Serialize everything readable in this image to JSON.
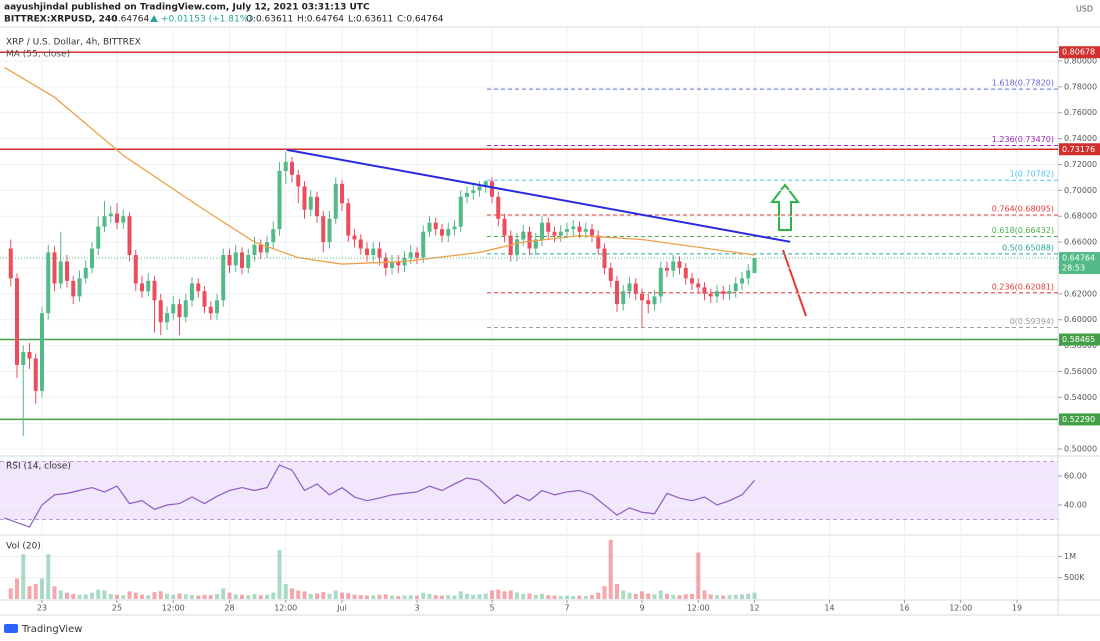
{
  "header": {
    "author_line": "aayushjindal published on TradingView.com, July 12, 2021 03:31:13 UTC",
    "symbol": "BITTREX:XRPUSD, 240",
    "price": "0.64764",
    "change": "+0.01153 (+1.81%)",
    "ohlc": [
      "O:0.63611",
      "H:0.64764",
      "L:0.63611",
      "C:0.64764"
    ]
  },
  "footer": "TradingView",
  "chart_data": [
    {
      "type": "candlestick",
      "title": "XRP / U.S. Dollar, 4h, BITTREX",
      "y_axis_label": "USD",
      "x": [
        1,
        2,
        3,
        4,
        5,
        6,
        7,
        8,
        9,
        10,
        11,
        12,
        13,
        14,
        15,
        16,
        17,
        18,
        19,
        20,
        21,
        22,
        23,
        24,
        25,
        26,
        27,
        28,
        29,
        30,
        31,
        32,
        33,
        34,
        35,
        36,
        37,
        38,
        39,
        40,
        41,
        42,
        43,
        44,
        45,
        46,
        47,
        48,
        49,
        50,
        51,
        52,
        53,
        54,
        55,
        56,
        57,
        58,
        59,
        60,
        61,
        62,
        63,
        64,
        65,
        66,
        67,
        68,
        69,
        70,
        71,
        72,
        73,
        74,
        75,
        76,
        77,
        78,
        79,
        80,
        81,
        82,
        83,
        84,
        85,
        86,
        87,
        88,
        89,
        90,
        91,
        92,
        93,
        94,
        95,
        96,
        97,
        98,
        99,
        100,
        101,
        102,
        103,
        104,
        105,
        106,
        107,
        108,
        109,
        110,
        111,
        112,
        113,
        114,
        115,
        116,
        117,
        118,
        119,
        120
      ],
      "open": [
        0.655,
        0.632,
        0.565,
        0.575,
        0.57,
        0.545,
        0.605,
        0.652,
        0.628,
        0.645,
        0.63,
        0.618,
        0.632,
        0.64,
        0.655,
        0.672,
        0.68,
        0.682,
        0.675,
        0.68,
        0.65,
        0.628,
        0.622,
        0.63,
        0.615,
        0.598,
        0.605,
        0.612,
        0.602,
        0.615,
        0.628,
        0.622,
        0.61,
        0.605,
        0.615,
        0.65,
        0.642,
        0.652,
        0.64,
        0.65,
        0.658,
        0.652,
        0.66,
        0.67,
        0.715,
        0.722,
        0.712,
        0.703,
        0.685,
        0.695,
        0.68,
        0.66,
        0.678,
        0.705,
        0.69,
        0.665,
        0.662,
        0.655,
        0.65,
        0.655,
        0.648,
        0.64,
        0.645,
        0.642,
        0.648,
        0.652,
        0.648,
        0.668,
        0.675,
        0.67,
        0.665,
        0.67,
        0.672,
        0.695,
        0.698,
        0.7,
        0.703,
        0.707,
        0.695,
        0.678,
        0.665,
        0.65,
        0.662,
        0.668,
        0.655,
        0.662,
        0.675,
        0.668,
        0.665,
        0.668,
        0.67,
        0.672,
        0.668,
        0.67,
        0.665,
        0.655,
        0.64,
        0.63,
        0.612,
        0.622,
        0.628,
        0.62,
        0.615,
        0.612,
        0.618,
        0.64,
        0.638,
        0.645,
        0.64,
        0.632,
        0.628,
        0.625,
        0.62,
        0.618,
        0.622,
        0.62,
        0.622,
        0.628,
        0.632,
        0.63611
      ],
      "high": [
        0.662,
        0.636,
        0.58,
        0.582,
        0.574,
        0.61,
        0.658,
        0.657,
        0.668,
        0.65,
        0.634,
        0.638,
        0.646,
        0.66,
        0.68,
        0.692,
        0.688,
        0.69,
        0.685,
        0.683,
        0.654,
        0.634,
        0.636,
        0.634,
        0.62,
        0.61,
        0.618,
        0.616,
        0.62,
        0.633,
        0.632,
        0.626,
        0.614,
        0.62,
        0.655,
        0.655,
        0.658,
        0.656,
        0.655,
        0.664,
        0.662,
        0.665,
        0.676,
        0.722,
        0.73,
        0.726,
        0.716,
        0.707,
        0.7,
        0.699,
        0.684,
        0.684,
        0.71,
        0.708,
        0.694,
        0.67,
        0.666,
        0.66,
        0.66,
        0.66,
        0.652,
        0.65,
        0.65,
        0.653,
        0.658,
        0.656,
        0.673,
        0.68,
        0.679,
        0.674,
        0.675,
        0.677,
        0.7,
        0.703,
        0.705,
        0.707,
        0.7078,
        0.71,
        0.699,
        0.682,
        0.669,
        0.667,
        0.673,
        0.672,
        0.667,
        0.68,
        0.679,
        0.672,
        0.673,
        0.675,
        0.677,
        0.676,
        0.675,
        0.674,
        0.669,
        0.659,
        0.644,
        0.634,
        0.627,
        0.633,
        0.632,
        0.624,
        0.62,
        0.623,
        0.645,
        0.645,
        0.65,
        0.649,
        0.644,
        0.636,
        0.632,
        0.629,
        0.624,
        0.627,
        0.626,
        0.627,
        0.633,
        0.637,
        0.643,
        0.64764
      ],
      "low": [
        0.626,
        0.555,
        0.51,
        0.562,
        0.535,
        0.54,
        0.6,
        0.622,
        0.624,
        0.625,
        0.612,
        0.614,
        0.628,
        0.636,
        0.65,
        0.668,
        0.675,
        0.67,
        0.67,
        0.645,
        0.622,
        0.617,
        0.618,
        0.59,
        0.588,
        0.592,
        0.6,
        0.588,
        0.598,
        0.61,
        0.617,
        0.605,
        0.6,
        0.6,
        0.61,
        0.636,
        0.637,
        0.635,
        0.636,
        0.645,
        0.647,
        0.648,
        0.655,
        0.665,
        0.705,
        0.706,
        0.69,
        0.678,
        0.68,
        0.675,
        0.652,
        0.655,
        0.674,
        0.684,
        0.66,
        0.656,
        0.65,
        0.645,
        0.645,
        0.642,
        0.634,
        0.635,
        0.636,
        0.637,
        0.643,
        0.643,
        0.644,
        0.664,
        0.665,
        0.66,
        0.66,
        0.665,
        0.668,
        0.69,
        0.693,
        0.695,
        0.698,
        0.69,
        0.672,
        0.66,
        0.645,
        0.645,
        0.657,
        0.65,
        0.65,
        0.657,
        0.663,
        0.66,
        0.66,
        0.663,
        0.665,
        0.663,
        0.663,
        0.66,
        0.65,
        0.635,
        0.625,
        0.606,
        0.607,
        0.617,
        0.615,
        0.59394,
        0.605,
        0.607,
        0.613,
        0.633,
        0.633,
        0.635,
        0.627,
        0.623,
        0.62,
        0.615,
        0.613,
        0.613,
        0.615,
        0.615,
        0.617,
        0.623,
        0.627,
        0.63611
      ],
      "close": [
        0.632,
        0.565,
        0.575,
        0.57,
        0.545,
        0.605,
        0.652,
        0.628,
        0.645,
        0.63,
        0.618,
        0.632,
        0.64,
        0.655,
        0.672,
        0.68,
        0.682,
        0.675,
        0.68,
        0.65,
        0.628,
        0.622,
        0.63,
        0.615,
        0.598,
        0.605,
        0.612,
        0.602,
        0.615,
        0.628,
        0.622,
        0.61,
        0.605,
        0.615,
        0.65,
        0.642,
        0.652,
        0.64,
        0.65,
        0.658,
        0.652,
        0.66,
        0.67,
        0.715,
        0.722,
        0.712,
        0.703,
        0.685,
        0.695,
        0.68,
        0.66,
        0.678,
        0.705,
        0.69,
        0.665,
        0.662,
        0.655,
        0.65,
        0.655,
        0.648,
        0.64,
        0.645,
        0.642,
        0.648,
        0.652,
        0.648,
        0.668,
        0.675,
        0.67,
        0.665,
        0.67,
        0.672,
        0.695,
        0.698,
        0.7,
        0.703,
        0.707,
        0.695,
        0.678,
        0.665,
        0.65,
        0.662,
        0.668,
        0.655,
        0.662,
        0.675,
        0.668,
        0.665,
        0.668,
        0.67,
        0.672,
        0.668,
        0.67,
        0.665,
        0.655,
        0.64,
        0.63,
        0.612,
        0.622,
        0.628,
        0.62,
        0.615,
        0.612,
        0.618,
        0.64,
        0.638,
        0.645,
        0.64,
        0.632,
        0.628,
        0.625,
        0.62,
        0.618,
        0.622,
        0.62,
        0.622,
        0.628,
        0.632,
        0.638,
        0.64764
      ],
      "up_color": "#53b987",
      "down_color": "#eb4d5c",
      "xlim": [
        -0.72,
        168.56
      ],
      "ylim": [
        0.4954,
        0.8255
      ],
      "grid": true,
      "yticks": [
        {
          "value": 0.5,
          "label": "0.50000"
        },
        {
          "value": 0.52,
          "label": "0.52000"
        },
        {
          "value": 0.54,
          "label": "0.54000"
        },
        {
          "value": 0.56,
          "label": "0.56000"
        },
        {
          "value": 0.58,
          "label": "0.58000"
        },
        {
          "value": 0.6,
          "label": "0.60000"
        },
        {
          "value": 0.62,
          "label": "0.62000"
        },
        {
          "value": 0.64,
          "label": "0.64000"
        },
        {
          "value": 0.66,
          "label": "0.66000"
        },
        {
          "value": 0.68,
          "label": "0.68000"
        },
        {
          "value": 0.7,
          "label": "0.70000"
        },
        {
          "value": 0.72,
          "label": "0.72000"
        },
        {
          "value": 0.74,
          "label": "0.74000"
        },
        {
          "value": 0.76,
          "label": "0.76000"
        },
        {
          "value": 0.78,
          "label": "0.78000"
        },
        {
          "value": 0.8,
          "label": "0.80000"
        }
      ],
      "overlays": [
        {
          "name": "MA (55, close)",
          "color": "#f0a048",
          "x": [
            0,
            8,
            19,
            31,
            40,
            47,
            54,
            64,
            76,
            83,
            92,
            102,
            111,
            120
          ],
          "values": [
            0.795,
            0.772,
            0.727,
            0.688,
            0.66,
            0.648,
            0.643,
            0.645,
            0.652,
            0.66,
            0.665,
            0.662,
            0.656,
            0.65
          ]
        }
      ],
      "trendline": {
        "color": "#2a2ae0",
        "x": [
          45.2,
          125.7
        ],
        "values": [
          0.7313,
          0.6602
        ]
      },
      "levels": [
        {
          "value": 0.80678,
          "label": "0.80678",
          "color": "#d32f2f"
        },
        {
          "value": 0.73176,
          "label": "0.73176",
          "color": "#d32f2f"
        },
        {
          "value": 0.58465,
          "label": "0.58465",
          "color": "#43a047"
        },
        {
          "value": 0.5229,
          "label": "0.52290",
          "color": "#43a047"
        }
      ],
      "fib": {
        "x_start": 77.2,
        "levels": [
          {
            "value": 0.7782,
            "label": "1.618(0.77820)",
            "color": "#5b6bd5"
          },
          {
            "value": 0.7347,
            "label": "1.236(0.73470)",
            "color": "#9c27b0"
          },
          {
            "value": 0.70782,
            "label": "1(0.70782)",
            "color": "#4fc3f7"
          },
          {
            "value": 0.68095,
            "label": "0.764(0.68095)",
            "color": "#e53935"
          },
          {
            "value": 0.66432,
            "label": "0.618(0.66432)",
            "color": "#4caf50"
          },
          {
            "value": 0.65088,
            "label": "0.5(0.65088)",
            "color": "#26a69a"
          },
          {
            "value": 0.62081,
            "label": "0.236(0.62081)",
            "color": "#e53935"
          },
          {
            "value": 0.59394,
            "label": "0(0.59394)",
            "color": "#9e9e9e"
          }
        ]
      },
      "last_price": {
        "value": 0.64764,
        "label": "0.64764",
        "countdown": "28:53",
        "color": "#53b987"
      }
    },
    {
      "type": "line",
      "title": "RSI (14, close)",
      "color": "#8e5bc4",
      "x": [
        0,
        4,
        6,
        8,
        10,
        12,
        14,
        16,
        18,
        20,
        22,
        24,
        26,
        28,
        30,
        32,
        34,
        36,
        38,
        40,
        42,
        44,
        46,
        48,
        50,
        52,
        54,
        56,
        58,
        60,
        62,
        64,
        66,
        68,
        70,
        72,
        74,
        76,
        78,
        80,
        82,
        84,
        86,
        88,
        90,
        92,
        94,
        96,
        98,
        100,
        102,
        104,
        106,
        108,
        110,
        112,
        114,
        116,
        118,
        120
      ],
      "values": [
        31,
        24.8,
        40,
        47,
        48,
        50,
        52,
        49,
        53,
        41,
        43,
        37,
        40,
        41,
        45.5,
        41,
        46,
        50,
        52,
        50,
        52,
        67.6,
        64,
        50,
        54.5,
        47,
        52,
        45.5,
        43,
        44.8,
        47,
        48,
        49,
        53,
        50,
        54.5,
        58.6,
        57,
        50,
        41,
        47,
        43,
        50,
        47,
        49,
        50,
        47,
        40,
        33,
        38,
        35,
        34,
        48,
        44.8,
        43,
        45.5,
        40,
        43,
        47,
        57
      ],
      "band": [
        30,
        70
      ],
      "band_color": "#f1e6fb",
      "xlim": [
        -0.72,
        168.56
      ],
      "ylim": [
        20.7,
        72.4
      ],
      "grid": true,
      "yticks": [
        {
          "value": 40,
          "label": "40.00"
        },
        {
          "value": 60,
          "label": "60.00"
        }
      ]
    },
    {
      "type": "bar",
      "title": "Vol (20)",
      "x": [
        1,
        2,
        3,
        4,
        5,
        6,
        7,
        8,
        9,
        10,
        11,
        12,
        13,
        14,
        15,
        16,
        17,
        18,
        19,
        20,
        21,
        22,
        23,
        24,
        25,
        26,
        27,
        28,
        29,
        30,
        31,
        32,
        33,
        34,
        35,
        36,
        37,
        38,
        39,
        40,
        41,
        42,
        43,
        44,
        45,
        46,
        47,
        48,
        49,
        50,
        51,
        52,
        53,
        54,
        55,
        56,
        57,
        58,
        59,
        60,
        61,
        62,
        63,
        64,
        65,
        66,
        67,
        68,
        69,
        70,
        71,
        72,
        73,
        74,
        75,
        76,
        77,
        78,
        79,
        80,
        81,
        82,
        83,
        84,
        85,
        86,
        87,
        88,
        89,
        90,
        91,
        92,
        93,
        94,
        95,
        96,
        97,
        98,
        99,
        100,
        101,
        102,
        103,
        104,
        105,
        106,
        107,
        108,
        109,
        110,
        111,
        112,
        113,
        114,
        115,
        116,
        117,
        118,
        119,
        120
      ],
      "values": [
        250000,
        480000,
        1050000,
        300000,
        350000,
        480000,
        1050000,
        300000,
        200000,
        150000,
        120000,
        100000,
        110000,
        150000,
        220000,
        200000,
        120000,
        100000,
        90000,
        180000,
        150000,
        100000,
        90000,
        160000,
        180000,
        120000,
        100000,
        130000,
        110000,
        90000,
        80000,
        100000,
        90000,
        120000,
        250000,
        150000,
        110000,
        100000,
        90000,
        120000,
        90000,
        100000,
        150000,
        1150000,
        350000,
        250000,
        200000,
        180000,
        120000,
        130000,
        160000,
        120000,
        200000,
        150000,
        140000,
        100000,
        90000,
        80000,
        90000,
        100000,
        110000,
        80000,
        70000,
        80000,
        90000,
        80000,
        150000,
        120000,
        90000,
        80000,
        90000,
        80000,
        180000,
        120000,
        100000,
        110000,
        130000,
        200000,
        220000,
        180000,
        200000,
        150000,
        120000,
        130000,
        100000,
        120000,
        90000,
        80000,
        70000,
        80000,
        70000,
        80000,
        70000,
        90000,
        150000,
        300000,
        1390000,
        350000,
        200000,
        150000,
        120000,
        180000,
        130000,
        110000,
        200000,
        120000,
        100000,
        90000,
        110000,
        120000,
        1090000,
        200000,
        110000,
        90000,
        80000,
        90000,
        100000,
        110000,
        120000,
        150000
      ],
      "xlim": [
        -0.72,
        168.56
      ],
      "ylim": [
        0,
        1430000
      ],
      "grid": true,
      "yticks": [
        {
          "value": 500000,
          "label": "500K"
        },
        {
          "value": 1000000,
          "label": "1M"
        }
      ],
      "xticks": [
        {
          "value": 6,
          "label": "23"
        },
        {
          "value": 18,
          "label": "25"
        },
        {
          "value": 27,
          "label": "12:00"
        },
        {
          "value": 36,
          "label": "28"
        },
        {
          "value": 45,
          "label": "12:00"
        },
        {
          "value": 54,
          "label": "Jul"
        },
        {
          "value": 66,
          "label": "3"
        },
        {
          "value": 78,
          "label": "5"
        },
        {
          "value": 90,
          "label": "7"
        },
        {
          "value": 102,
          "label": "9"
        },
        {
          "value": 111,
          "label": "12:00"
        },
        {
          "value": 120,
          "label": "12"
        },
        {
          "value": 132,
          "label": "14"
        },
        {
          "value": 144,
          "label": "16"
        },
        {
          "value": 153,
          "label": "12:00"
        },
        {
          "value": 162,
          "label": "19"
        }
      ]
    }
  ]
}
